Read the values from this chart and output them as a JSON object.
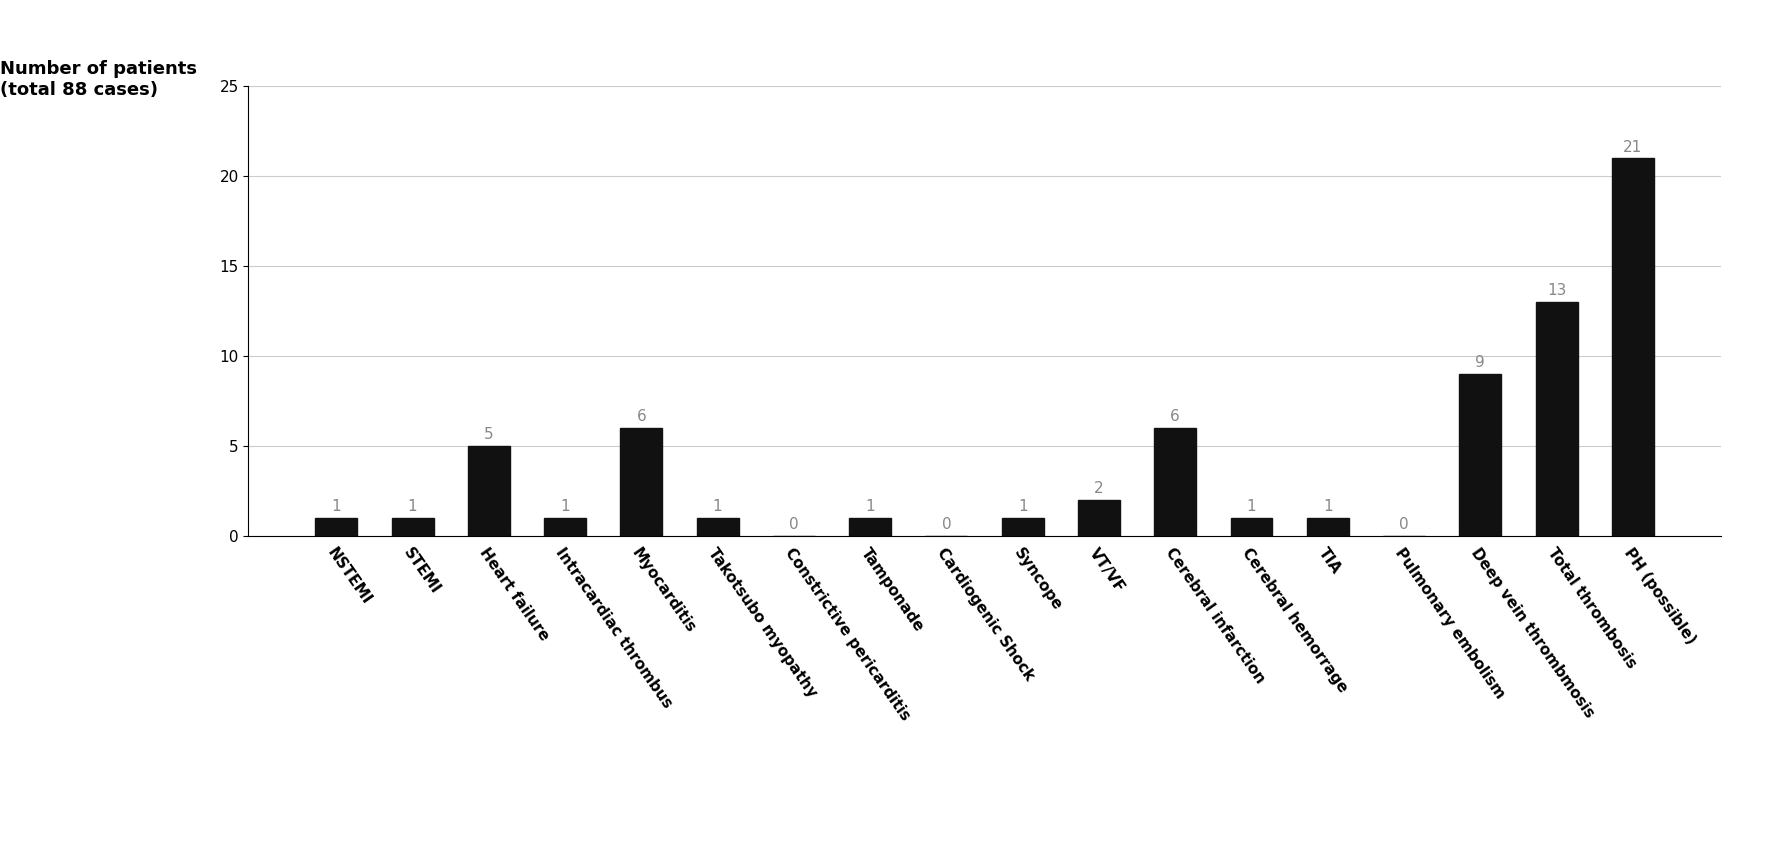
{
  "categories": [
    "NSTEMI",
    "STEMI",
    "Heart failure",
    "Intracardiac thrombus",
    "Myocarditis",
    "Takotsubo myopathy",
    "Constrictive pericarditis",
    "Tamponade",
    "Cardiogenic Shock",
    "Syncope",
    "VT/VF",
    "Cerebral infarction",
    "Cerebral hemorrage",
    "TIA",
    "Pulmonary embolism",
    "Deep vein thrombmosis",
    "Total thrombosis",
    "PH (possible)"
  ],
  "values": [
    1,
    1,
    5,
    1,
    6,
    1,
    0,
    1,
    0,
    1,
    2,
    6,
    1,
    1,
    0,
    9,
    13,
    21
  ],
  "bar_color": "#111111",
  "ylabel_line1": "Number of patients",
  "ylabel_line2": "(total 88 cases)",
  "ylim": [
    0,
    25
  ],
  "yticks": [
    0,
    5,
    10,
    15,
    20,
    25
  ],
  "value_label_fontsize": 11,
  "tick_fontsize": 11,
  "ylabel_fontsize": 13,
  "bar_width": 0.55,
  "figure_width": 17.74,
  "figure_height": 8.64,
  "value_label_color": "#888888",
  "grid_color": "#cccccc",
  "xtick_rotation": -55
}
